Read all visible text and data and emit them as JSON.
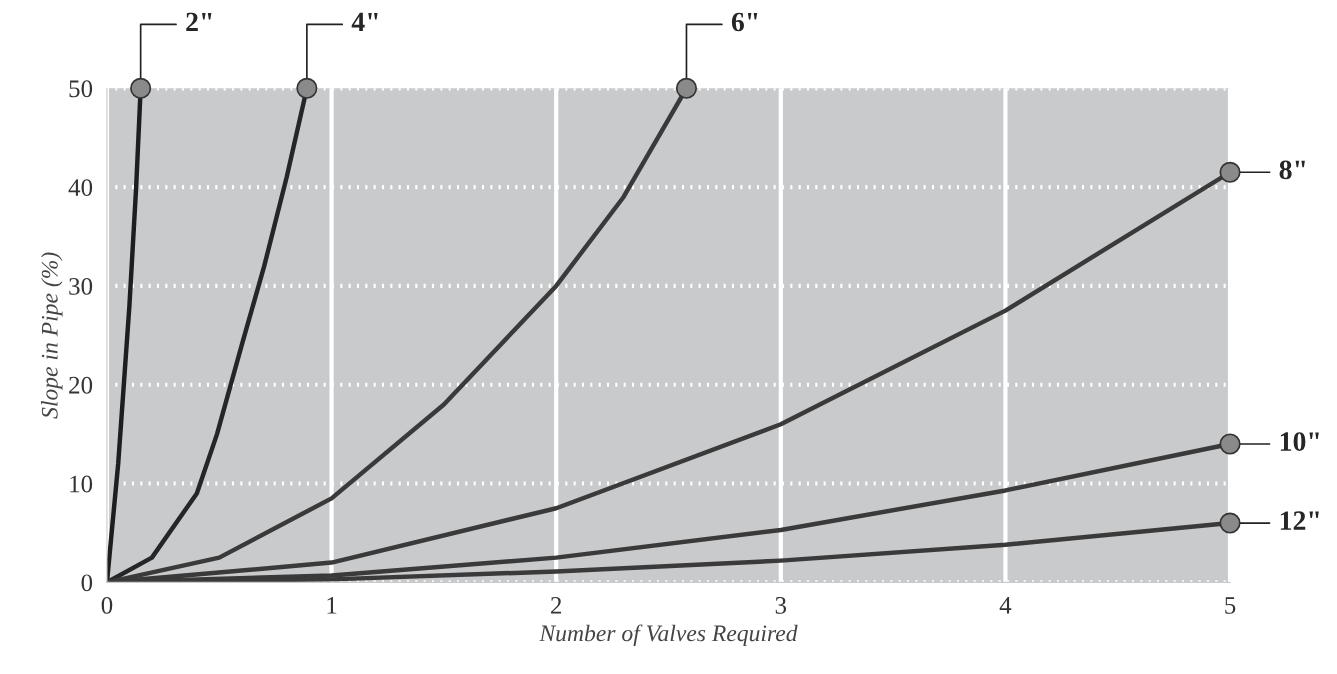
{
  "chart_data": {
    "type": "line",
    "xlabel": "Number of Valves Required",
    "ylabel": "Slope in Pipe (%)",
    "xlim": [
      0,
      5
    ],
    "ylim": [
      0,
      50
    ],
    "xticks": [
      0,
      1,
      2,
      3,
      4,
      5
    ],
    "yticks": [
      0,
      10,
      20,
      30,
      40,
      50
    ],
    "grid": true,
    "legend": false,
    "series": [
      {
        "color": "#1e1e1e",
        "x": [
          0,
          0.05,
          0.1,
          0.13,
          0.15
        ],
        "values": [
          0,
          12,
          28,
          40,
          50
        ]
      },
      {
        "color": "#262626",
        "x": [
          0,
          0.2,
          0.4,
          0.49,
          0.6,
          0.7,
          0.8,
          0.89
        ],
        "values": [
          0,
          2.5,
          9,
          15,
          24,
          32,
          41,
          50
        ]
      },
      {
        "color": "#3a3a3a",
        "x": [
          0,
          0.5,
          1,
          1.5,
          2,
          2.3,
          2.58
        ],
        "values": [
          0,
          2.5,
          8.5,
          18,
          30,
          39,
          50
        ]
      },
      {
        "color": "#3a3a3a",
        "x": [
          0,
          1,
          2,
          3,
          4,
          5
        ],
        "values": [
          0,
          2,
          7.5,
          16,
          27.5,
          41.5
        ]
      },
      {
        "color": "#3a3a3a",
        "x": [
          0,
          1,
          2,
          3,
          4,
          5
        ],
        "values": [
          0,
          0.7,
          2.5,
          5.3,
          9.3,
          14
        ]
      },
      {
        "color": "#3a3a3a",
        "x": [
          0,
          1,
          2,
          3,
          4,
          5
        ],
        "values": [
          0,
          0.3,
          1.1,
          2.2,
          3.8,
          6
        ]
      }
    ],
    "annotations": [
      {
        "text": "2\"",
        "x": 0.15,
        "y": 50
      },
      {
        "text": "4\"",
        "x": 0.89,
        "y": 50
      },
      {
        "text": "6\"",
        "x": 2.58,
        "y": 50
      },
      {
        "text": "8\"",
        "x": 5,
        "y": 41.5
      },
      {
        "text": "10\"",
        "x": 5,
        "y": 14
      },
      {
        "text": "12\"",
        "x": 5,
        "y": 6
      }
    ]
  }
}
